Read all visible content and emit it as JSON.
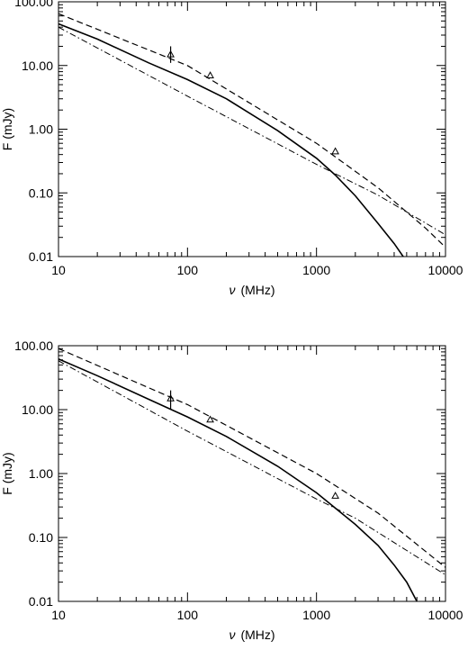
{
  "chart_data": [
    {
      "type": "line",
      "xlabel_symbol": "ν",
      "xlabel_unit": "(MHz)",
      "ylabel": "F (mJy)",
      "xscale": "log",
      "yscale": "log",
      "xlim": [
        10,
        10000
      ],
      "ylim": [
        0.01,
        100
      ],
      "x_ticks": [
        {
          "value": 10,
          "label": "10"
        },
        {
          "value": 100,
          "label": "100"
        },
        {
          "value": 1000,
          "label": "1000"
        },
        {
          "value": 10000,
          "label": "10000"
        }
      ],
      "y_ticks": [
        {
          "value": 0.01,
          "label": "0.01"
        },
        {
          "value": 0.1,
          "label": "0.10"
        },
        {
          "value": 1,
          "label": "1.00"
        },
        {
          "value": 10,
          "label": "10.00"
        },
        {
          "value": 100,
          "label": "100.00"
        }
      ],
      "grid": false,
      "legend": "none",
      "series": [
        {
          "style": "solid",
          "x": [
            10,
            20,
            50,
            100,
            200,
            500,
            1000,
            1400,
            2000,
            3000,
            4000,
            4700
          ],
          "y": [
            45,
            26,
            11,
            6.0,
            3.0,
            0.95,
            0.35,
            0.19,
            0.09,
            0.033,
            0.016,
            0.01
          ]
        },
        {
          "style": "dashed",
          "x": [
            10,
            100,
            1000,
            3000,
            5000,
            7000,
            10000
          ],
          "y": [
            65,
            10,
            0.6,
            0.12,
            0.05,
            0.028,
            0.014
          ]
        },
        {
          "style": "dashdot",
          "x": [
            10,
            100,
            1000,
            3000,
            10000
          ],
          "y": [
            40,
            3.3,
            0.28,
            0.092,
            0.022
          ]
        }
      ],
      "points": [
        {
          "x": 74,
          "y": 15,
          "yerr_low": 11,
          "yerr_high": 20
        },
        {
          "x": 150,
          "y": 7
        },
        {
          "x": 1400,
          "y": 0.45
        }
      ]
    },
    {
      "type": "line",
      "xlabel_symbol": "ν",
      "xlabel_unit": "(MHz)",
      "ylabel": "F (mJy)",
      "xscale": "log",
      "yscale": "log",
      "xlim": [
        10,
        10000
      ],
      "ylim": [
        0.01,
        100
      ],
      "x_ticks": [
        {
          "value": 10,
          "label": "10"
        },
        {
          "value": 100,
          "label": "100"
        },
        {
          "value": 1000,
          "label": "1000"
        },
        {
          "value": 10000,
          "label": "10000"
        }
      ],
      "y_ticks": [
        {
          "value": 0.01,
          "label": "0.01"
        },
        {
          "value": 0.1,
          "label": "0.10"
        },
        {
          "value": 1,
          "label": "1.00"
        },
        {
          "value": 10,
          "label": "10.00"
        },
        {
          "value": 100,
          "label": "100.00"
        }
      ],
      "grid": false,
      "legend": "none",
      "series": [
        {
          "style": "solid",
          "x": [
            10,
            20,
            50,
            100,
            200,
            500,
            1000,
            2000,
            3000,
            4000,
            5000,
            6000
          ],
          "y": [
            62,
            34,
            14.5,
            7.7,
            3.8,
            1.3,
            0.5,
            0.16,
            0.075,
            0.037,
            0.02,
            0.01
          ]
        },
        {
          "style": "dashed",
          "x": [
            10,
            100,
            1000,
            3000,
            10000
          ],
          "y": [
            90,
            12,
            1.0,
            0.24,
            0.034
          ]
        },
        {
          "style": "dashdot",
          "x": [
            10,
            100,
            1000,
            2000,
            10000
          ],
          "y": [
            58,
            4.6,
            0.4,
            0.2,
            0.026
          ]
        }
      ],
      "points": [
        {
          "x": 74,
          "y": 15,
          "yerr_low": 10,
          "yerr_high": 20
        },
        {
          "x": 150,
          "y": 7
        },
        {
          "x": 1400,
          "y": 0.45
        }
      ]
    }
  ]
}
